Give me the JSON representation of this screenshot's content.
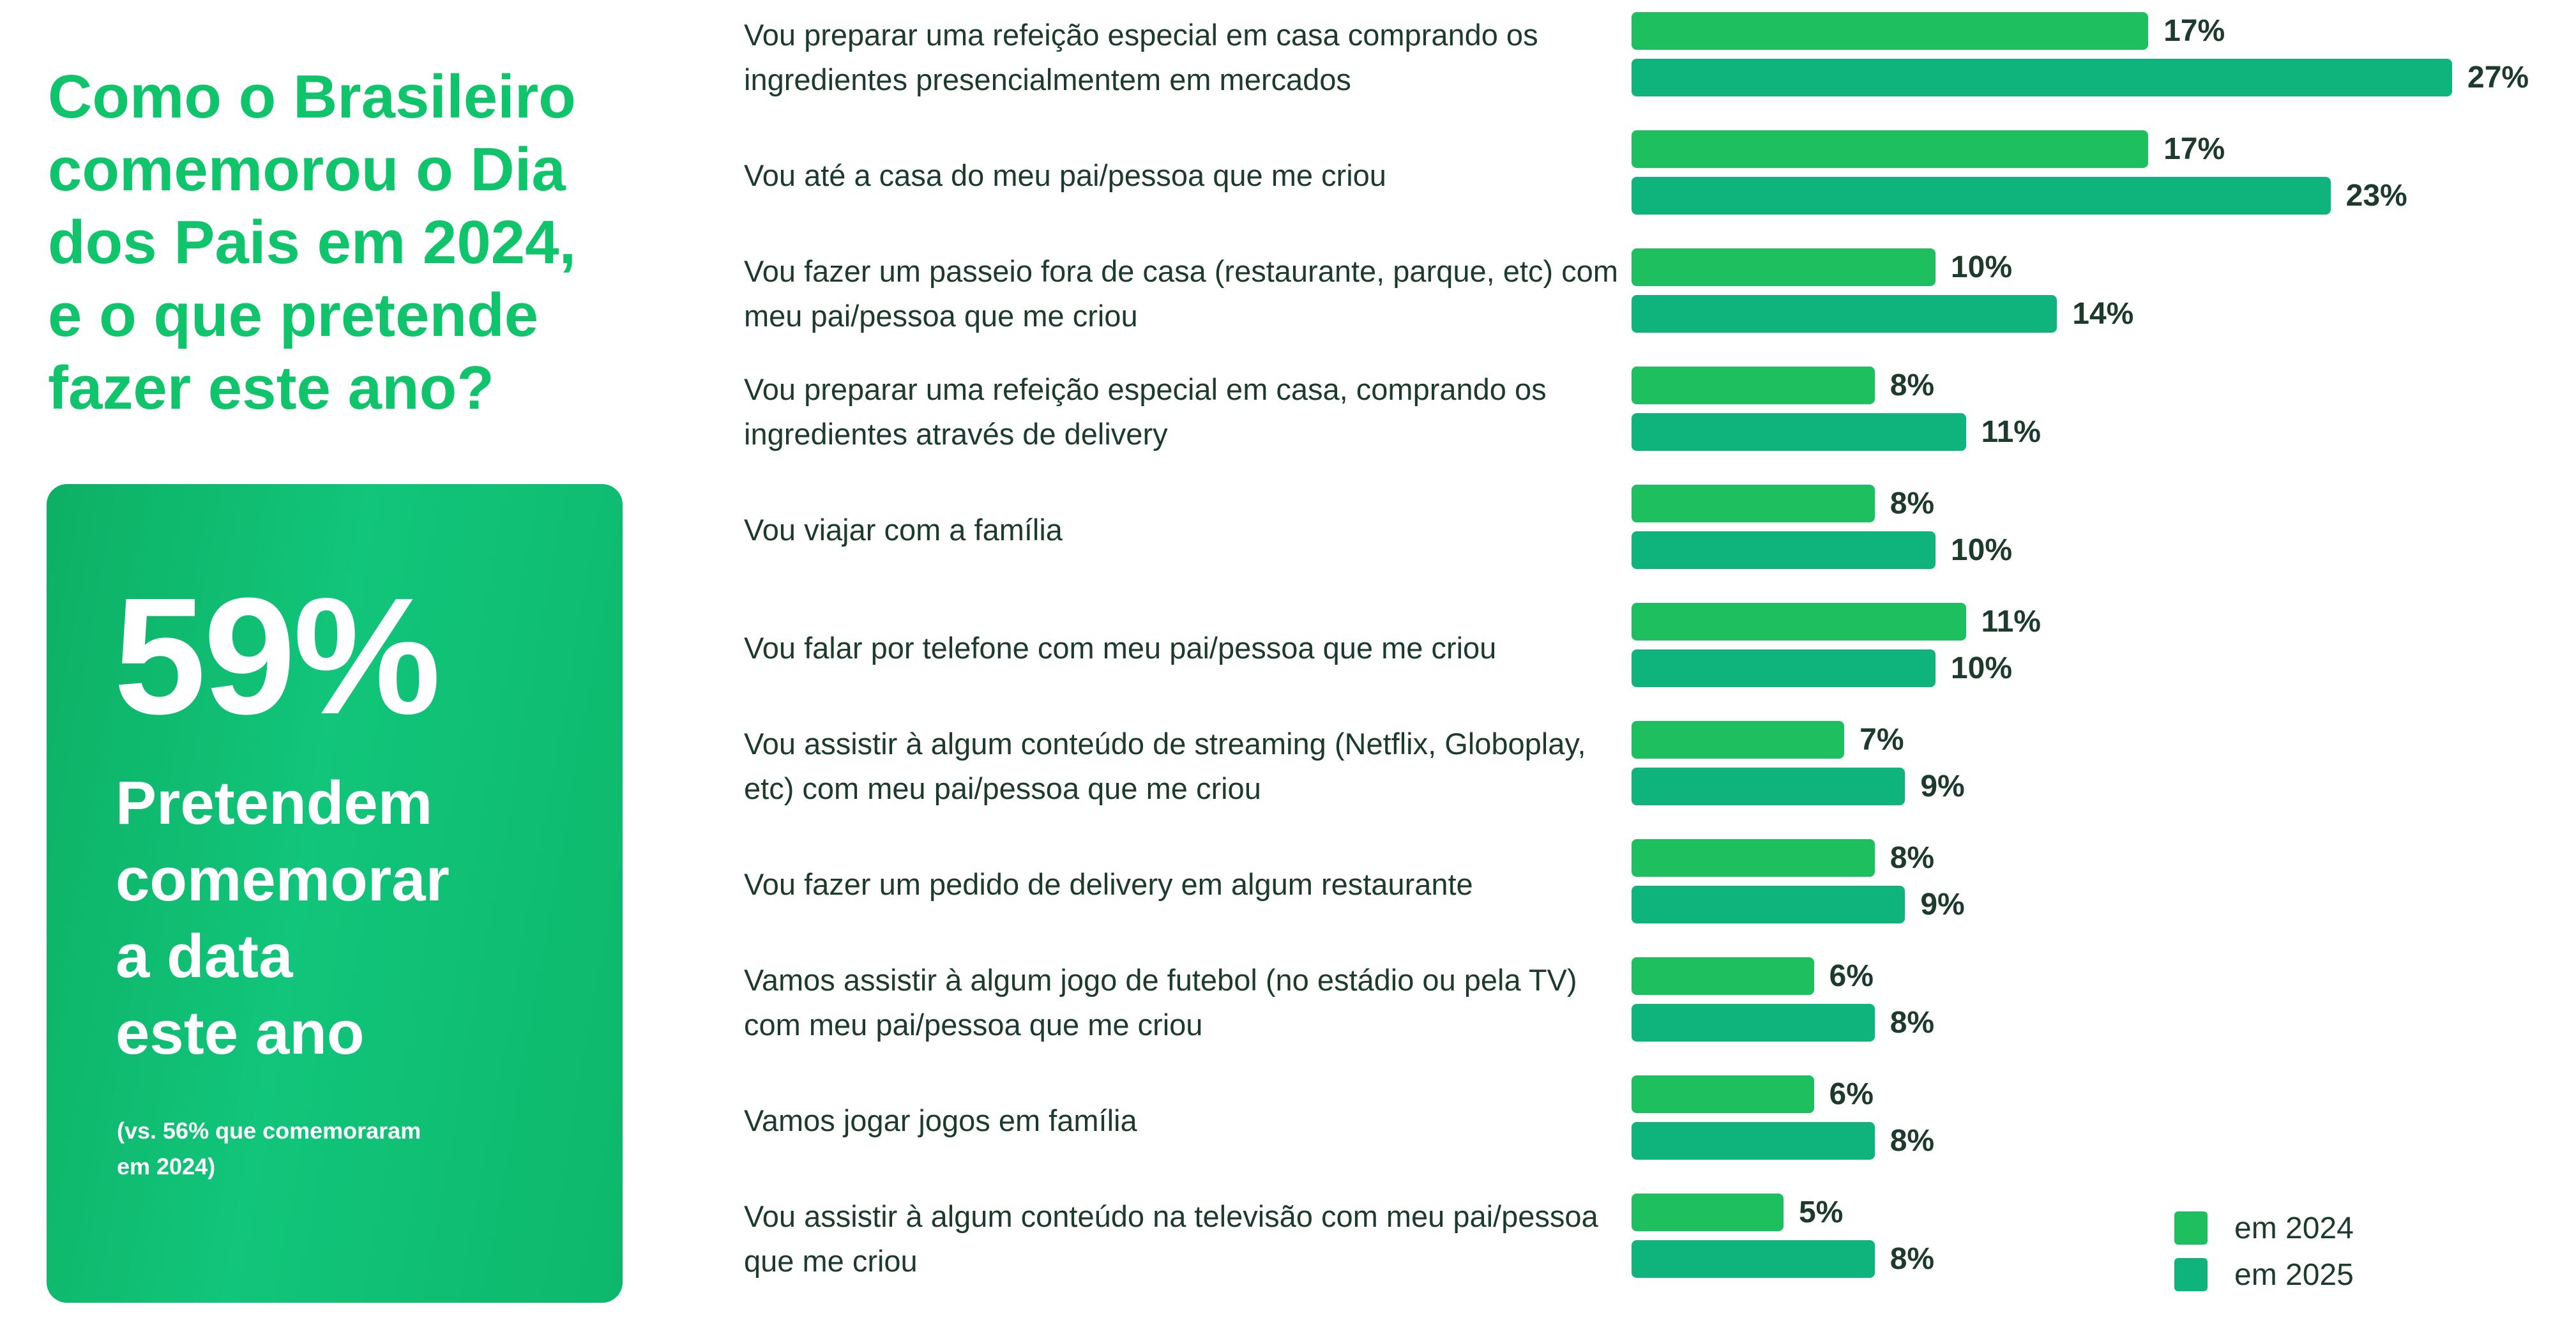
{
  "headline": "Como o Brasileiro\ncomemorou o Dia\ndos Pais em 2024,\ne o que pretende\nfazer este ano?",
  "stat_card": {
    "value": "59%",
    "label": "Pretendem\ncomemorar\na data\neste ano",
    "footnote": "(vs. 56% que comemoraram\nem 2024)"
  },
  "colors": {
    "headline": "#10c46b",
    "card": "#0fbf70",
    "series_2024": "#1dbf5e",
    "series_2025": "#0eb47c",
    "text": "#1c3b2c"
  },
  "chart_data": {
    "type": "bar",
    "orientation": "horizontal",
    "categories": [
      "Vou preparar uma refeição especial em casa comprando os ingredientes presencialmentem em mercados",
      "Vou até a casa do meu pai/pessoa que me criou",
      "Vou fazer um passeio fora de casa (restaurante, parque, etc) com meu pai/pessoa que me criou",
      "Vou preparar uma refeição especial em casa, comprando os ingredientes através de delivery",
      "Vou viajar com a família",
      "Vou falar por telefone com meu pai/pessoa que me criou",
      "Vou assistir à algum conteúdo de streaming (Netflix, Globoplay, etc) com meu pai/pessoa que me criou",
      "Vou fazer um pedido de delivery em algum restaurante",
      "Vamos assistir à algum jogo de futebol (no estádio ou pela TV) com meu pai/pessoa que me criou",
      "Vamos jogar jogos em família",
      "Vou assistir à algum conteúdo na televisão com meu pai/pessoa que me criou"
    ],
    "series": [
      {
        "name": "em 2024",
        "values": [
          17,
          17,
          10,
          8,
          8,
          11,
          7,
          8,
          6,
          6,
          5
        ]
      },
      {
        "name": "em 2025",
        "values": [
          27,
          23,
          14,
          11,
          10,
          10,
          9,
          9,
          8,
          8,
          8
        ]
      }
    ],
    "value_suffix": "%",
    "title": "",
    "xlabel": "",
    "ylabel": "",
    "xlim": [
      0,
      27
    ],
    "grid": false,
    "legend": "bottom-right"
  }
}
